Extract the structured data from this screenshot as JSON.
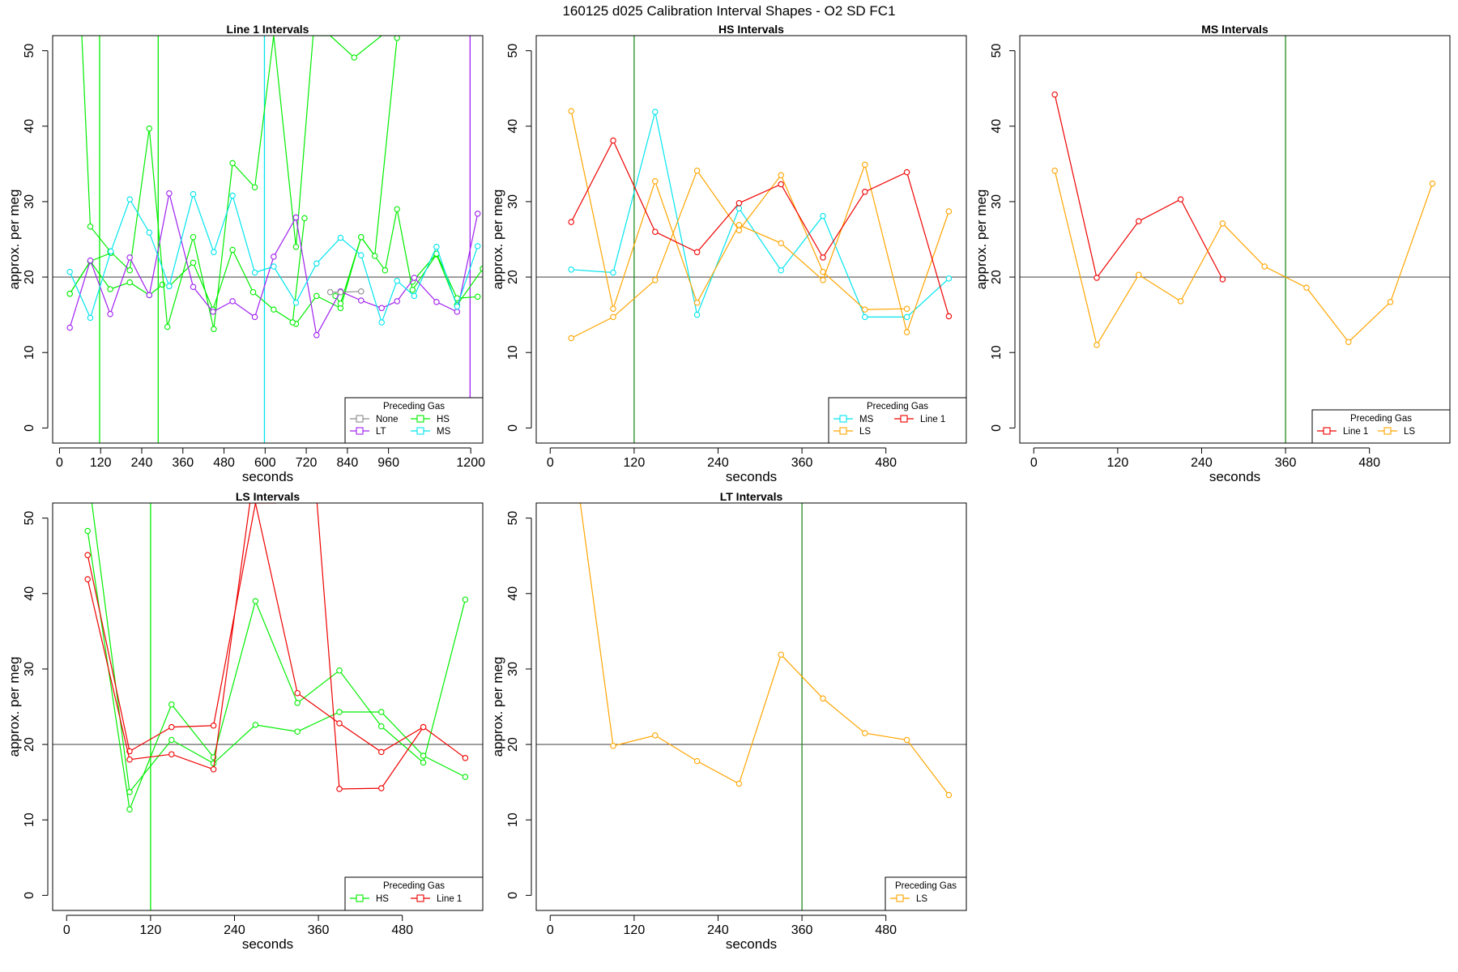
{
  "title": "160125   d025   Calibration Interval Shapes - O2 SD FC1",
  "colors": {
    "None": "#8a8a8a",
    "LT": "#a020f0",
    "HS": "#00ee00",
    "MS": "#00e5ee",
    "LS": "#ffa500",
    "Line 1": "#ee0000",
    "ref_line": "#555555",
    "vline_dark": "#228b22"
  },
  "chart_data": [
    {
      "type": "line",
      "title": "Line 1 Intervals",
      "xlabel": "seconds",
      "ylabel": "approx. per meg",
      "xlim": [
        -20,
        1235
      ],
      "ylim": [
        -2,
        52
      ],
      "xticks": [
        0,
        120,
        240,
        360,
        480,
        600,
        720,
        840,
        960,
        1200
      ],
      "yticks": [
        0,
        10,
        20,
        30,
        40,
        50
      ],
      "hline": 20,
      "legend": {
        "title": "Preceding Gas",
        "position": "bottom-right",
        "cols": 2,
        "entries": [
          "None",
          "HS",
          "LT",
          "MS"
        ]
      },
      "vlines": [
        {
          "x": 117,
          "color": "#00ee00"
        },
        {
          "x": 288,
          "color": "#00ee00"
        },
        {
          "x": 598,
          "color": "#00e5ee"
        },
        {
          "x": 1198,
          "color": "#a020f0"
        }
      ],
      "series": [
        {
          "name": "HS",
          "x": [
            30,
            90,
            148,
            205,
            262,
            300
          ],
          "y": [
            17.8,
            22.1,
            18.4,
            19.3,
            17.6,
            19.0
          ]
        },
        {
          "name": "HS",
          "x": [
            30,
            90,
            150
          ],
          "y": [
            17.8,
            22.1,
            23.2
          ]
        },
        {
          "name": "HS",
          "x": [
            65,
            90,
            148,
            205,
            262,
            315,
            390,
            450,
            505,
            570,
            625,
            690,
            740,
            790,
            860,
            940
          ],
          "y": [
            52,
            26.7,
            23.4,
            20.9,
            39.7,
            13.4,
            25.3,
            13.1,
            35.1,
            31.9,
            52,
            24.0,
            52,
            52,
            49.1,
            52
          ]
        },
        {
          "name": "HS",
          "x": [
            320,
            390,
            448,
            505,
            565,
            625,
            690,
            750,
            820,
            880,
            950,
            985,
            1030,
            1100,
            1160,
            1235
          ],
          "y": [
            18.8,
            21.9,
            15.7,
            23.6,
            18.0,
            15.7,
            13.8,
            17.5,
            15.9,
            25.3,
            20.9,
            29.0,
            18.3,
            23.0,
            16.3,
            21.1
          ]
        },
        {
          "name": "HS",
          "x": [
            680,
            715
          ],
          "y": [
            14.0,
            27.8
          ]
        },
        {
          "name": "HS",
          "x": [
            805,
            820,
            880,
            920,
            985
          ],
          "y": [
            17.5,
            16.5,
            25.3,
            22.8,
            51.7
          ]
        },
        {
          "name": "HS",
          "x": [
            1030,
            1100,
            1160,
            1220
          ],
          "y": [
            19.4,
            23.1,
            17.2,
            17.4
          ]
        },
        {
          "name": "LT",
          "x": [
            30,
            90,
            148,
            205,
            262,
            320,
            390,
            448,
            505,
            570,
            625,
            690
          ],
          "y": [
            13.3,
            22.2,
            15.1,
            22.6,
            17.6,
            31.1,
            18.7,
            15.4,
            16.8,
            14.7,
            22.7,
            27.9
          ]
        },
        {
          "name": "LT",
          "x": [
            690,
            750,
            820,
            880,
            940,
            985,
            1035,
            1100,
            1160,
            1220
          ],
          "y": [
            27.9,
            12.3,
            18.1,
            16.9,
            15.9,
            16.8,
            19.9,
            16.7,
            15.4,
            28.4
          ]
        },
        {
          "name": "MS",
          "x": [
            30,
            90,
            150,
            205,
            262,
            320,
            390,
            450,
            505,
            570,
            625,
            690,
            750,
            820,
            880,
            940,
            985,
            1035,
            1100,
            1160,
            1220
          ],
          "y": [
            20.7,
            14.6,
            23.4,
            30.3,
            25.9,
            18.8,
            31.0,
            23.3,
            30.8,
            20.6,
            21.4,
            16.6,
            21.8,
            25.2,
            22.9,
            14.0,
            19.5,
            17.5,
            24.0,
            16.1,
            24.1
          ]
        },
        {
          "name": "None",
          "x": [
            790,
            820,
            880
          ],
          "y": [
            18.0,
            18.0,
            18.1
          ]
        }
      ]
    },
    {
      "type": "line",
      "title": "HS Intervals",
      "xlabel": "seconds",
      "ylabel": "approx. per meg",
      "xlim": [
        -20,
        595
      ],
      "ylim": [
        -2,
        52
      ],
      "xticks": [
        0,
        120,
        240,
        360,
        480
      ],
      "yticks": [
        0,
        10,
        20,
        30,
        40,
        50
      ],
      "hline": 20,
      "legend": {
        "title": "Preceding Gas",
        "position": "bottom-right",
        "cols": 2,
        "entries": [
          "MS",
          "Line 1",
          "LS"
        ]
      },
      "vlines": [
        {
          "x": 120,
          "color": "#228b22"
        }
      ],
      "series": [
        {
          "name": "MS",
          "x": [
            30,
            90,
            150,
            210,
            270,
            330,
            390,
            450,
            510,
            570
          ],
          "y": [
            21.0,
            20.6,
            41.9,
            15.0,
            29.1,
            20.9,
            28.1,
            14.7,
            14.7,
            19.8
          ]
        },
        {
          "name": "LS",
          "x": [
            30,
            90,
            150,
            210,
            270,
            330,
            390,
            450,
            510,
            570
          ],
          "y": [
            42.0,
            15.8,
            32.7,
            16.6,
            26.9,
            24.5,
            19.6,
            34.9,
            12.7,
            28.7
          ]
        },
        {
          "name": "LS",
          "x": [
            30,
            90,
            150,
            210,
            270,
            330,
            390,
            450,
            510
          ],
          "y": [
            11.9,
            14.7,
            19.6,
            34.1,
            26.2,
            33.5,
            20.7,
            15.7,
            15.8
          ]
        },
        {
          "name": "Line 1",
          "x": [
            30,
            90,
            150,
            210,
            270,
            330,
            390,
            450,
            510,
            570
          ],
          "y": [
            27.3,
            38.1,
            26.0,
            23.3,
            29.8,
            32.3,
            22.6,
            31.3,
            33.9,
            14.8
          ]
        }
      ]
    },
    {
      "type": "line",
      "title": "MS Intervals",
      "xlabel": "seconds",
      "ylabel": "approx. per meg",
      "xlim": [
        -20,
        595
      ],
      "ylim": [
        -2,
        52
      ],
      "xticks": [
        0,
        120,
        240,
        360,
        480
      ],
      "yticks": [
        0,
        10,
        20,
        30,
        40,
        50
      ],
      "hline": 20,
      "legend": {
        "title": "Preceding Gas",
        "position": "bottom-right",
        "cols": 2,
        "entries": [
          "Line 1",
          "LS"
        ]
      },
      "vlines": [
        {
          "x": 360,
          "color": "#228b22"
        }
      ],
      "series": [
        {
          "name": "Line 1",
          "x": [
            30,
            90,
            150,
            210,
            270
          ],
          "y": [
            44.2,
            19.9,
            27.4,
            30.3,
            19.7
          ]
        },
        {
          "name": "LS",
          "x": [
            30,
            90,
            150,
            210,
            270,
            330,
            390,
            450,
            510,
            570
          ],
          "y": [
            34.1,
            11.0,
            20.3,
            16.8,
            27.1,
            21.4,
            18.6,
            11.4,
            16.7,
            32.4
          ]
        }
      ]
    },
    {
      "type": "line",
      "title": "LS Intervals",
      "xlabel": "seconds",
      "ylabel": "approx. per meg",
      "xlim": [
        -20,
        595
      ],
      "ylim": [
        -2,
        52
      ],
      "xticks": [
        0,
        120,
        240,
        360,
        480
      ],
      "yticks": [
        0,
        10,
        20,
        30,
        40,
        50
      ],
      "hline": 20,
      "legend": {
        "title": "Preceding Gas",
        "position": "bottom-right",
        "cols": 2,
        "entries": [
          "HS",
          "Line 1"
        ]
      },
      "vlines": [
        {
          "x": 120,
          "color": "#00ee00"
        }
      ],
      "series": [
        {
          "name": "HS",
          "x": [
            30,
            90,
            150,
            210,
            270,
            330,
            390,
            450,
            510,
            570
          ],
          "y": [
            48.3,
            11.4,
            25.3,
            18.3,
            39.0,
            25.5,
            29.8,
            22.4,
            17.6,
            39.2
          ]
        },
        {
          "name": "HS",
          "x": [
            36,
            90,
            150,
            210,
            270,
            330,
            390,
            450,
            510,
            570
          ],
          "y": [
            52,
            13.7,
            20.6,
            17.5,
            22.6,
            21.7,
            24.3,
            24.3,
            18.5,
            15.7
          ]
        },
        {
          "name": "Line 1",
          "x": [
            30,
            90,
            150,
            210,
            270,
            330,
            390,
            450,
            510,
            570
          ],
          "y": [
            45.1,
            19.1,
            22.3,
            22.5,
            52,
            26.8,
            22.8,
            19.0,
            22.3,
            18.2
          ]
        },
        {
          "name": "Line 1",
          "x": [
            30,
            90,
            150,
            210,
            262,
            270,
            300
          ],
          "y": [
            41.9,
            18.0,
            18.7,
            16.7,
            52,
            52,
            52
          ]
        },
        {
          "name": "Line 1",
          "x": [
            358,
            390,
            450,
            510
          ],
          "y": [
            52,
            14.1,
            14.2,
            22.3
          ]
        }
      ]
    },
    {
      "type": "line",
      "title": "LT Intervals",
      "xlabel": "seconds",
      "ylabel": "approx. per meg",
      "xlim": [
        -20,
        595
      ],
      "ylim": [
        -2,
        52
      ],
      "xticks": [
        0,
        120,
        240,
        360,
        480
      ],
      "yticks": [
        0,
        10,
        20,
        30,
        40,
        50
      ],
      "hline": 20,
      "legend": {
        "title": "Preceding Gas",
        "position": "bottom-right",
        "cols": 1,
        "entries": [
          "LS"
        ]
      },
      "vlines": [
        {
          "x": 360,
          "color": "#228b22"
        }
      ],
      "series": [
        {
          "name": "LS",
          "x": [
            43,
            90,
            150,
            210,
            270,
            330,
            390,
            450,
            510,
            570
          ],
          "y": [
            52,
            19.8,
            21.2,
            17.8,
            14.8,
            31.9,
            26.1,
            21.5,
            20.6,
            13.3
          ]
        }
      ]
    }
  ]
}
